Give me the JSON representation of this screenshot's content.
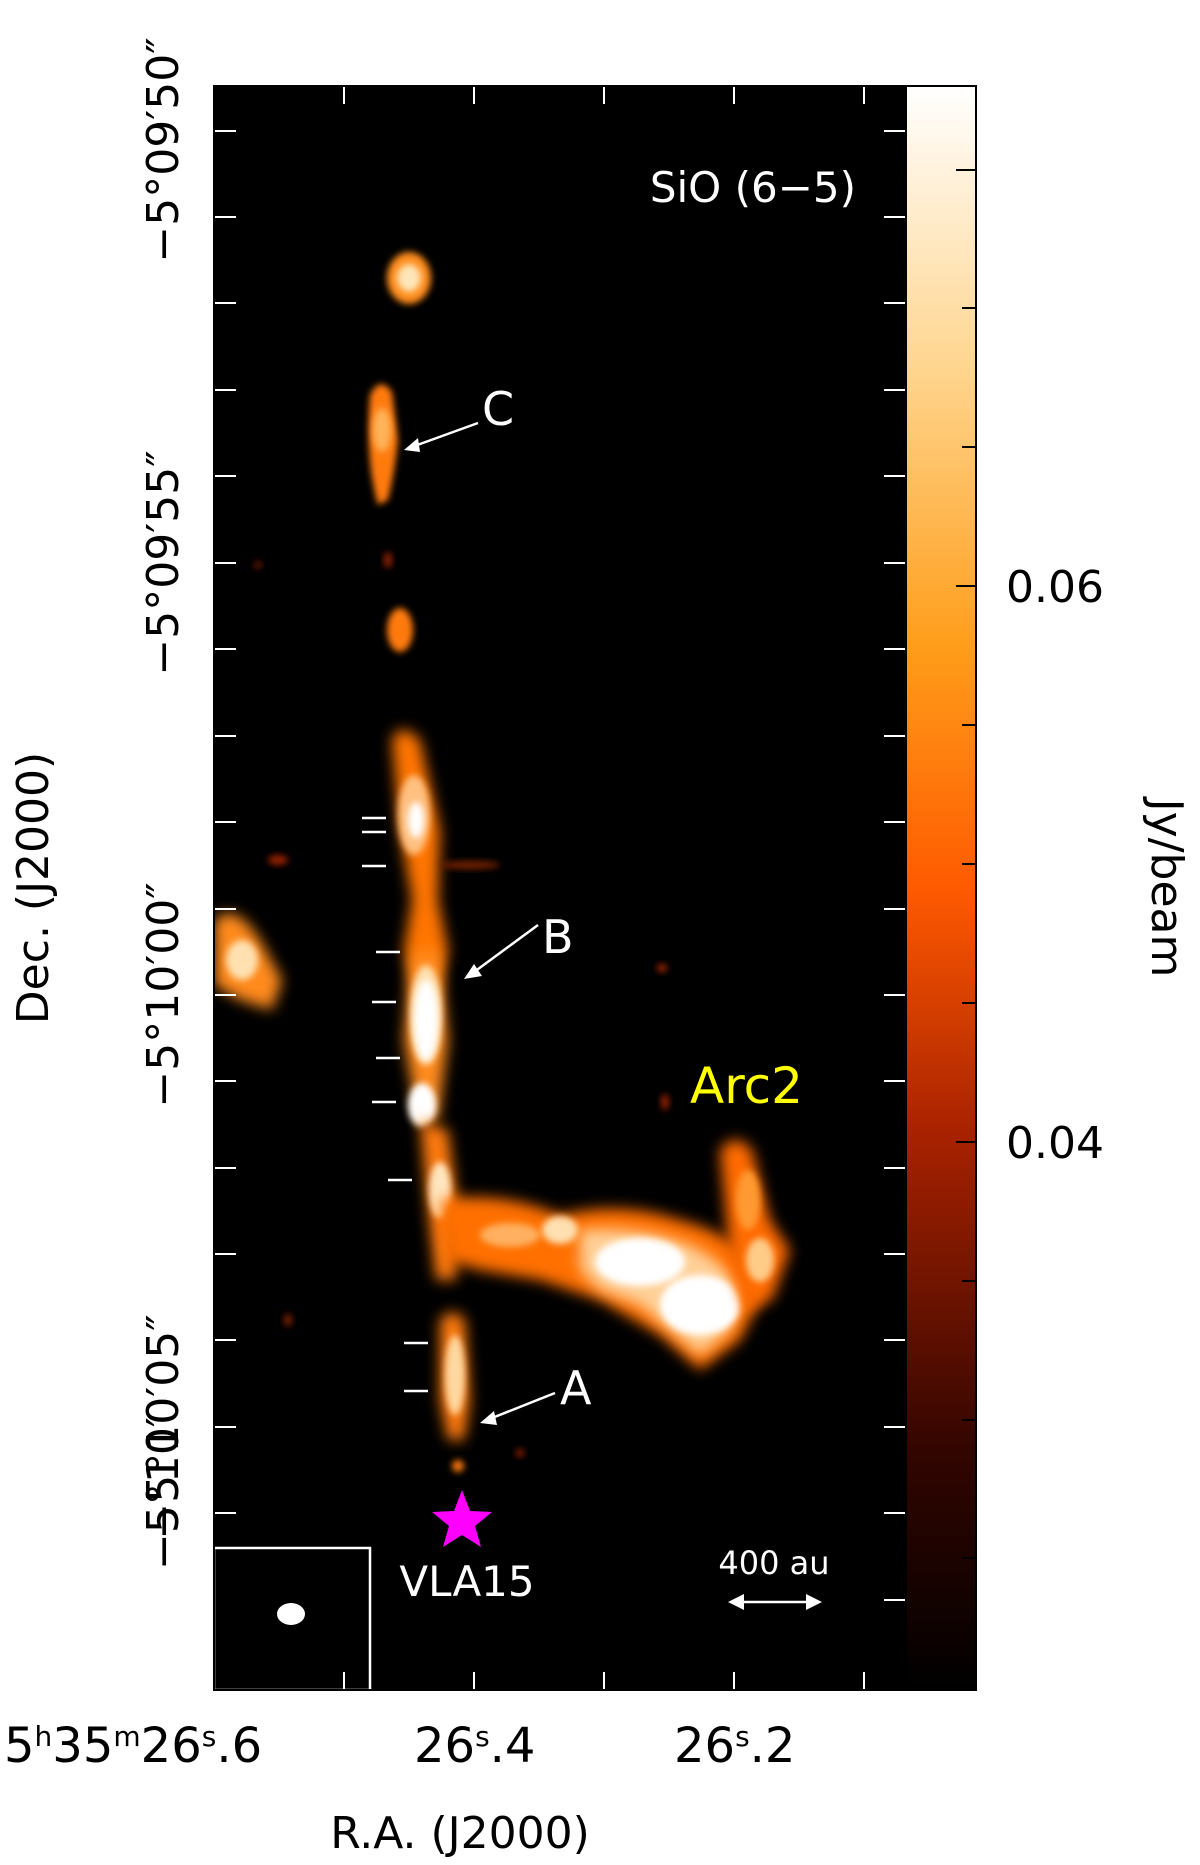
{
  "map": {
    "title": "SiO (6−5)",
    "xlabel": "R.A. (J2000)",
    "ylabel": "Dec. (J2000)",
    "colorbar_label": "Jy/beam",
    "ra_ticks": [
      {
        "sup": [
          "h",
          "m",
          "s"
        ],
        "parts": [
          "5",
          "35",
          "26",
          ".6"
        ]
      },
      {
        "sup": [
          "s"
        ],
        "parts": [
          "26",
          ".4"
        ]
      },
      {
        "sup": [
          "s"
        ],
        "parts": [
          "26",
          ".2"
        ]
      }
    ],
    "dec_ticks": [
      "−5°09′50″",
      "−5°09′55″",
      "−5°10′00″",
      "−5°10′05″",
      "−5°10′"
    ],
    "colorbar_ticks": [
      "0.06",
      "0.04"
    ],
    "labels": {
      "c": "C",
      "b": "B",
      "a": "A",
      "arc2": "Arc2",
      "source": "VLA15",
      "scalebar": "400 au"
    },
    "colors": {
      "background": "#000000",
      "arc2_label": "#ffff00",
      "source_marker": "#ff00ff",
      "emission_low": "#ff6600",
      "emission_high": "#ffffff"
    },
    "icons": {
      "source_marker": "star-icon",
      "beam": "beam-ellipse"
    }
  }
}
